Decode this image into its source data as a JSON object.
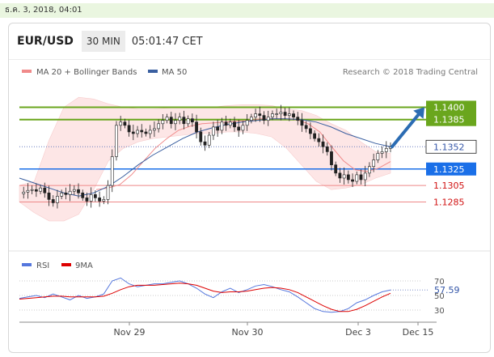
{
  "date_line": "ธ.ค. 3, 2018, 04:01",
  "header": {
    "pair": "EUR/USD",
    "timeframe": "30 MIN",
    "time": "05:01:47 CET"
  },
  "legend": {
    "ma20": "MA 20 + Bollinger Bands",
    "ma50": "MA 50",
    "credit": "Research © 2018 Trading Central",
    "rsi": "RSI",
    "rsi_ma": "9MA"
  },
  "colors": {
    "green_level": "#6aa61d",
    "blue_level": "#1a6fe8",
    "red_level": "#d11111",
    "ma20": "#f08a8a",
    "ma50": "#3a5fa0",
    "bollinger_fill": "#fde6e6",
    "arrow": "#2b6cb3",
    "rsi": "#5577dd",
    "rsi_ma": "#dd0000"
  },
  "chart_data": [
    {
      "type": "candlestick",
      "title": "EUR/USD 30 MIN",
      "ylim": [
        1.1255,
        1.1425
      ],
      "x_ticks": [
        "Nov 29",
        "Nov 30",
        "Dec 3",
        "Dec 15"
      ],
      "levels": [
        {
          "label": "1.1400",
          "value": 1.14,
          "kind": "resistance"
        },
        {
          "label": "1.1385",
          "value": 1.1385,
          "kind": "resistance"
        },
        {
          "label": "1.1352",
          "value": 1.1352,
          "kind": "last"
        },
        {
          "label": "1.1325",
          "value": 1.1325,
          "kind": "pivot"
        },
        {
          "label": "1.1305",
          "value": 1.1305,
          "kind": "support"
        },
        {
          "label": "1.1285",
          "value": 1.1285,
          "kind": "support"
        }
      ],
      "close_path": [
        1.1295,
        1.1297,
        1.1299,
        1.13,
        1.1298,
        1.1302,
        1.1296,
        1.1288,
        1.1284,
        1.1292,
        1.1296,
        1.1294,
        1.1298,
        1.13,
        1.1296,
        1.129,
        1.1286,
        1.1294,
        1.129,
        1.1286,
        1.1288,
        1.1305,
        1.134,
        1.1378,
        1.1382,
        1.1378,
        1.137,
        1.1368,
        1.1372,
        1.137,
        1.1368,
        1.1372,
        1.1374,
        1.138,
        1.1384,
        1.1388,
        1.138,
        1.1384,
        1.1388,
        1.138,
        1.1386,
        1.1382,
        1.137,
        1.1358,
        1.1354,
        1.1366,
        1.1376,
        1.1372,
        1.1382,
        1.1378,
        1.1382,
        1.1376,
        1.1372,
        1.1378,
        1.1384,
        1.1388,
        1.1392,
        1.139,
        1.1384,
        1.1388,
        1.1392,
        1.1392,
        1.1394,
        1.139,
        1.1392,
        1.1388,
        1.1384,
        1.1378,
        1.1374,
        1.1368,
        1.1362,
        1.1358,
        1.1352,
        1.1346,
        1.133,
        1.132,
        1.1314,
        1.1318,
        1.1312,
        1.131,
        1.1318,
        1.1312,
        1.132,
        1.1328,
        1.1336,
        1.1344,
        1.1346,
        1.135,
        1.1352
      ],
      "ma20": [
        1.13,
        1.1302,
        1.1306,
        1.1318,
        1.1334,
        1.135,
        1.1362,
        1.1372,
        1.1377,
        1.138,
        1.1381,
        1.1382,
        1.1383,
        1.1384,
        1.1386,
        1.1386,
        1.1386,
        1.1385,
        1.138,
        1.137,
        1.1352,
        1.1335,
        1.1324,
        1.1322,
        1.1326,
        1.1334
      ],
      "ma50": [
        1.1314,
        1.1308,
        1.1302,
        1.1296,
        1.1292,
        1.1296,
        1.1304,
        1.1316,
        1.133,
        1.1342,
        1.1352,
        1.1362,
        1.137,
        1.1375,
        1.1379,
        1.1382,
        1.1384,
        1.1386,
        1.1386,
        1.1385,
        1.1382,
        1.1376,
        1.1368,
        1.1362,
        1.1356,
        1.1352
      ],
      "bb_upper": [
        1.1305,
        1.131,
        1.136,
        1.14,
        1.1412,
        1.141,
        1.1404,
        1.14,
        1.1398,
        1.1398,
        1.1399,
        1.14,
        1.14,
        1.14,
        1.1402,
        1.1403,
        1.1403,
        1.1402,
        1.1398,
        1.1396,
        1.139,
        1.138,
        1.1372,
        1.1358,
        1.1346,
        1.1344
      ],
      "bb_lower": [
        1.1285,
        1.1272,
        1.1262,
        1.1262,
        1.127,
        1.13,
        1.1335,
        1.135,
        1.1358,
        1.1362,
        1.1364,
        1.1366,
        1.1368,
        1.1368,
        1.137,
        1.137,
        1.1368,
        1.1364,
        1.135,
        1.133,
        1.131,
        1.13,
        1.1302,
        1.1306,
        1.1314,
        1.132
      ],
      "arrow_target": 1.14
    },
    {
      "type": "line",
      "title": "RSI",
      "ylim": [
        20,
        80
      ],
      "y_ticks": [
        70,
        50,
        30
      ],
      "last_value_label": "57.59",
      "series": [
        {
          "name": "RSI",
          "values": [
            46,
            48,
            50,
            47,
            52,
            48,
            44,
            50,
            46,
            48,
            52,
            70,
            74,
            66,
            62,
            64,
            66,
            66,
            68,
            70,
            66,
            60,
            52,
            47,
            55,
            60,
            54,
            58,
            63,
            65,
            62,
            58,
            55,
            48,
            40,
            32,
            28,
            27,
            28,
            32,
            40,
            44,
            50,
            55,
            57.59
          ]
        },
        {
          "name": "9MA",
          "values": [
            45,
            46,
            47,
            48,
            49,
            49,
            48,
            48,
            48,
            48,
            49,
            53,
            58,
            62,
            64,
            64,
            64,
            65,
            66,
            67,
            66,
            64,
            60,
            56,
            54,
            55,
            55,
            56,
            58,
            60,
            61,
            60,
            58,
            54,
            48,
            42,
            36,
            31,
            28,
            28,
            31,
            36,
            42,
            48,
            53
          ]
        }
      ]
    }
  ]
}
